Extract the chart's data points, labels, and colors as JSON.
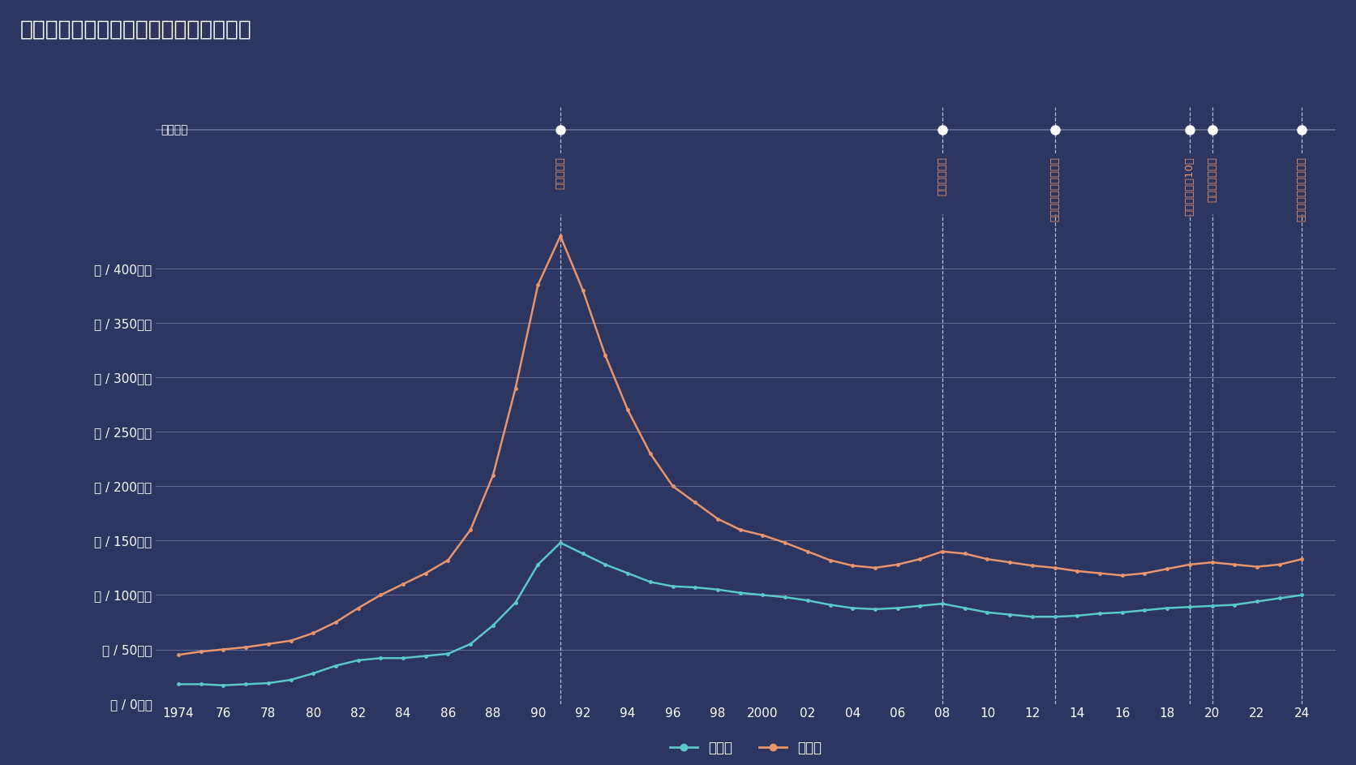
{
  "title": "横浜市鶴見区　土地価格の推移（平均）",
  "bg_color": "#2d3561",
  "text_color": "#ffffff",
  "grid_color": "#6b7299",
  "timeline_label": "経済年表",
  "residential_label": "住宅地",
  "commercial_label": "商業地",
  "residential_color": "#5bc8c8",
  "commercial_color": "#e8956d",
  "event_text_color": "#e8956d",
  "ytick_labels": [
    "坪 / 0万円",
    "坪 / 50万円",
    "坪 / 100万円",
    "坪 / 150万円",
    "坪 / 200万円",
    "坪 / 250万円",
    "坪 / 300万円",
    "坪 / 350万円",
    "坪 / 400万円"
  ],
  "ytick_values": [
    0,
    50,
    100,
    150,
    200,
    250,
    300,
    350,
    400
  ],
  "ylim": [
    0,
    450
  ],
  "xlim": [
    1973,
    2025.5
  ],
  "events": [
    {
      "year": 1991,
      "label": "バブル崩壊"
    },
    {
      "year": 2008,
      "label": "世界金融危機"
    },
    {
      "year": 2013,
      "label": "日銀　異次元金融緩和"
    },
    {
      "year": 2019,
      "label": "増税　消費税10％"
    },
    {
      "year": 2020,
      "label": "コロナ感染拡大"
    },
    {
      "year": 2024,
      "label": "日銀　異次元緩和終了"
    }
  ],
  "residential_data": {
    "years": [
      1974,
      1975,
      1976,
      1977,
      1978,
      1979,
      1980,
      1981,
      1982,
      1983,
      1984,
      1985,
      1986,
      1987,
      1988,
      1989,
      1990,
      1991,
      1992,
      1993,
      1994,
      1995,
      1996,
      1997,
      1998,
      1999,
      2000,
      2001,
      2002,
      2003,
      2004,
      2005,
      2006,
      2007,
      2008,
      2009,
      2010,
      2011,
      2012,
      2013,
      2014,
      2015,
      2016,
      2017,
      2018,
      2019,
      2020,
      2021,
      2022,
      2023,
      2024
    ],
    "values": [
      18,
      18,
      17,
      18,
      19,
      22,
      28,
      35,
      40,
      42,
      42,
      44,
      46,
      55,
      72,
      93,
      128,
      148,
      138,
      128,
      120,
      112,
      108,
      107,
      105,
      102,
      100,
      98,
      95,
      91,
      88,
      87,
      88,
      90,
      92,
      88,
      84,
      82,
      80,
      80,
      81,
      83,
      84,
      86,
      88,
      89,
      90,
      91,
      94,
      97,
      100
    ]
  },
  "commercial_data": {
    "years": [
      1974,
      1975,
      1976,
      1977,
      1978,
      1979,
      1980,
      1981,
      1982,
      1983,
      1984,
      1985,
      1986,
      1987,
      1988,
      1989,
      1990,
      1991,
      1992,
      1993,
      1994,
      1995,
      1996,
      1997,
      1998,
      1999,
      2000,
      2001,
      2002,
      2003,
      2004,
      2005,
      2006,
      2007,
      2008,
      2009,
      2010,
      2011,
      2012,
      2013,
      2014,
      2015,
      2016,
      2017,
      2018,
      2019,
      2020,
      2021,
      2022,
      2023,
      2024
    ],
    "values": [
      45,
      48,
      50,
      52,
      55,
      58,
      65,
      75,
      88,
      100,
      110,
      120,
      132,
      160,
      210,
      290,
      385,
      430,
      380,
      320,
      270,
      230,
      200,
      185,
      170,
      160,
      155,
      148,
      140,
      132,
      127,
      125,
      128,
      133,
      140,
      138,
      133,
      130,
      127,
      125,
      122,
      120,
      118,
      120,
      124,
      128,
      130,
      128,
      126,
      128,
      133
    ]
  },
  "xtick_years": [
    1974,
    1976,
    1978,
    1980,
    1982,
    1984,
    1986,
    1988,
    1990,
    1992,
    1994,
    1996,
    1998,
    2000,
    2002,
    2004,
    2006,
    2008,
    2010,
    2012,
    2014,
    2016,
    2018,
    2020,
    2022,
    2024
  ],
  "xtick_labels": [
    "1974",
    "76",
    "78",
    "80",
    "82",
    "84",
    "86",
    "88",
    "90",
    "92",
    "94",
    "96",
    "98",
    "2000",
    "02",
    "04",
    "06",
    "08",
    "10",
    "12",
    "14",
    "16",
    "18",
    "20",
    "22",
    "24"
  ]
}
